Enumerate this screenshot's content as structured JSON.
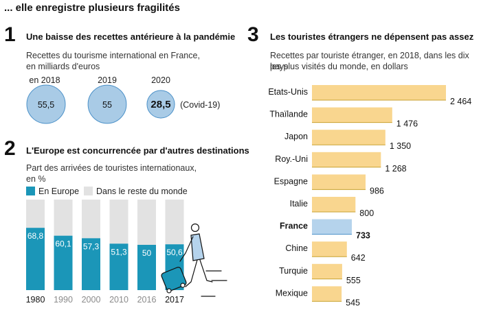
{
  "header": "... elle enregistre plusieurs fragilités",
  "colors": {
    "circle_fill": "#a9cbe6",
    "circle_stroke": "#4a90c8",
    "europe": "#1b96b8",
    "rest": "#e2e2e2",
    "bar": "#f9d68f",
    "bar_line": "#c8a230",
    "highlight": "#b5d3ec"
  },
  "panel1": {
    "number": "1",
    "title": "Une baisse des recettes antérieure à la pandémie",
    "subtitle_line1": "Recettes du tourisme international en France,",
    "subtitle_line2": "en milliards d'euros",
    "chart_data": {
      "type": "bubble",
      "title": "Une baisse des recettes antérieure à la pandémie",
      "unit": "milliards d'euros",
      "items": [
        {
          "year": "en 2018",
          "value": 55.5,
          "label": "55,5",
          "bold": false
        },
        {
          "year": "2019",
          "value": 55,
          "label": "55",
          "bold": false
        },
        {
          "year": "2020",
          "value": 28.5,
          "label": "28,5",
          "bold": true,
          "note": "(Covid-19)"
        }
      ]
    }
  },
  "panel2": {
    "number": "2",
    "title": "L'Europe est concurrencée par d'autres destinations",
    "subtitle_line1": "Part des arrivées de touristes internationaux,",
    "subtitle_line2": "en %",
    "legend_europe": "En Europe",
    "legend_rest": "Dans le reste du monde",
    "chart_data": {
      "type": "bar",
      "stacked": true,
      "unit": "%",
      "categories": [
        "1980",
        "1990",
        "2000",
        "2010",
        "2016",
        "2017"
      ],
      "series": [
        {
          "name": "En Europe",
          "values": [
            68.8,
            60.1,
            57.3,
            51.3,
            50,
            50.6
          ],
          "labels": [
            "68,8",
            "60,1",
            "57,3",
            "51,3",
            "50",
            "50,6"
          ]
        },
        {
          "name": "Dans le reste du monde",
          "values": [
            31.2,
            39.9,
            42.7,
            48.7,
            50,
            49.4
          ]
        }
      ],
      "emphasized_categories": [
        "1980",
        "2017"
      ],
      "ylim": [
        0,
        100
      ]
    }
  },
  "panel3": {
    "number": "3",
    "title": "Les touristes étrangers ne dépensent pas assez",
    "subtitle_line1": "Recettes par touriste étranger, en 2018, dans les dix pays",
    "subtitle_line2": "les plus visités du monde, en dollars",
    "chart_data": {
      "type": "bar",
      "orientation": "horizontal",
      "unit": "dollars",
      "categories": [
        "Etats-Unis",
        "Thaïlande",
        "Japon",
        "Roy.-Uni",
        "Espagne",
        "Italie",
        "France",
        "Chine",
        "Turquie",
        "Mexique"
      ],
      "values": [
        2464,
        1476,
        1350,
        1268,
        986,
        800,
        733,
        642,
        555,
        545
      ],
      "labels": [
        "2 464",
        "1 476",
        "1 350",
        "1 268",
        "986",
        "800",
        "733",
        "642",
        "555",
        "545"
      ],
      "highlight": "France",
      "xlim": [
        0,
        2464
      ]
    }
  }
}
